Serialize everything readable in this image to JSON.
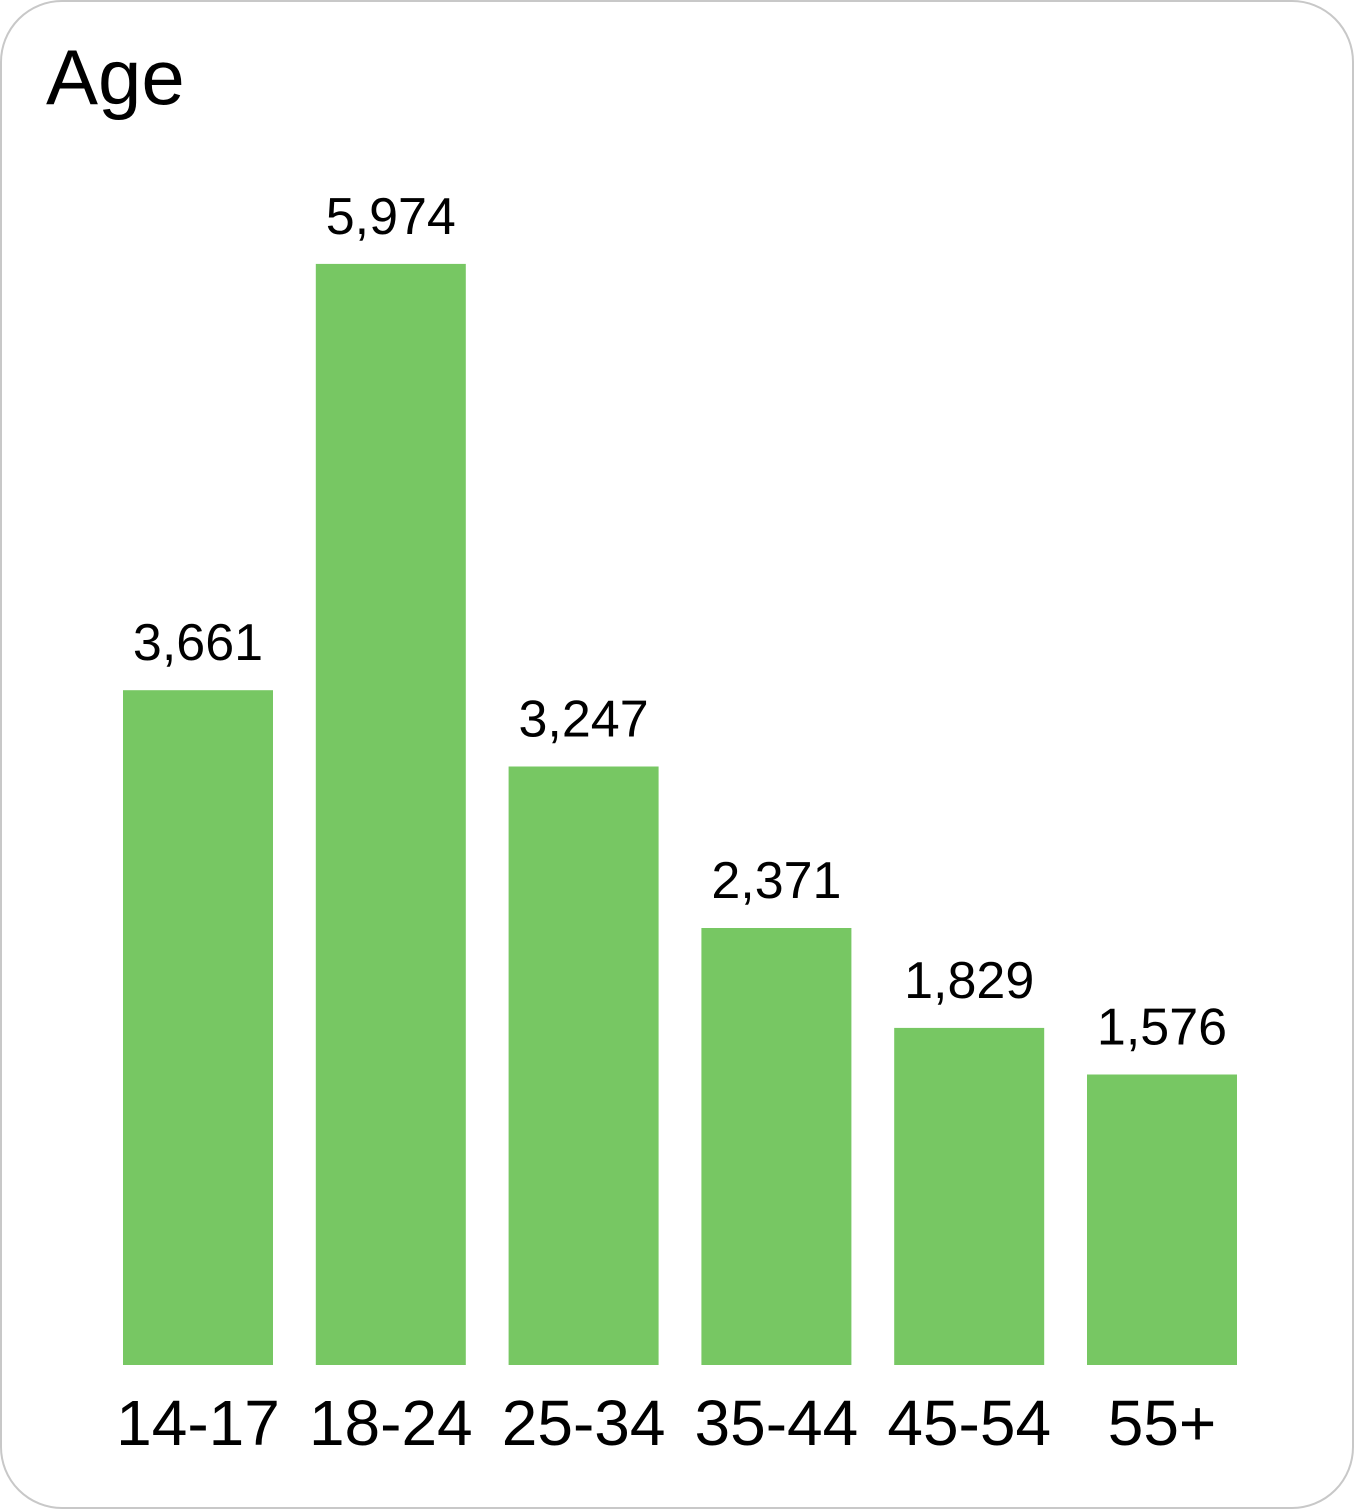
{
  "card": {
    "title": "Age"
  },
  "chart_data": {
    "type": "bar",
    "title": "Age",
    "xlabel": "",
    "ylabel": "",
    "categories": [
      "14-17",
      "18-24",
      "25-34",
      "35-44",
      "45-54",
      "55+"
    ],
    "values": [
      3661,
      5974,
      3247,
      2371,
      1829,
      1576
    ],
    "value_labels": [
      "3,661",
      "5,974",
      "3,247",
      "2,371",
      "1,829",
      "1,576"
    ],
    "ylim": [
      0,
      6000
    ],
    "grid": false,
    "legend": "none",
    "bar_color": "#77c763"
  }
}
